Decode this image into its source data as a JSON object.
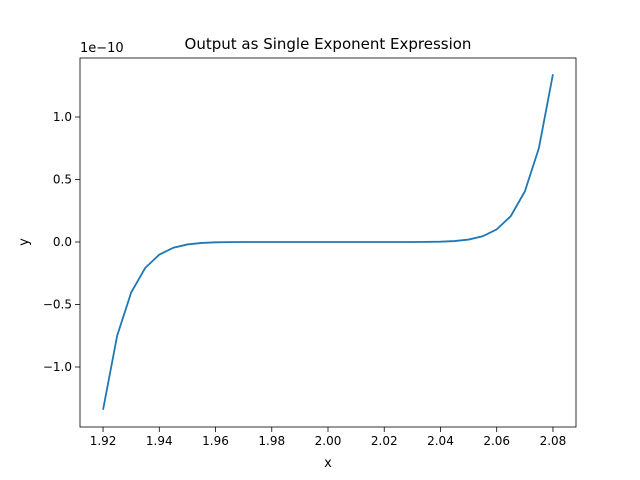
{
  "chart_data": {
    "type": "line",
    "title": "Output as Single Exponent Expression",
    "xlabel": "x",
    "ylabel": "y",
    "y_offset_label": "1e−10",
    "x": [
      1.92,
      1.925,
      1.93,
      1.935,
      1.94,
      1.945,
      1.95,
      1.955,
      1.96,
      1.965,
      1.97,
      1.975,
      1.98,
      1.985,
      1.99,
      1.995,
      2.0,
      2.005,
      2.01,
      2.015,
      2.02,
      2.025,
      2.03,
      2.035,
      2.04,
      2.045,
      2.05,
      2.055,
      2.06,
      2.065,
      2.07,
      2.075,
      2.08
    ],
    "series": [
      {
        "name": "y",
        "color": "#1f77b4",
        "values": [
          -1.342,
          -0.751,
          -0.404,
          -0.207,
          -0.101,
          -0.046,
          -0.0195,
          -0.0076,
          -0.0026,
          -0.0008,
          -0.0002,
          0,
          0,
          0,
          0,
          0,
          0,
          0,
          0,
          0,
          0,
          0,
          0.0002,
          0.0008,
          0.0026,
          0.0076,
          0.0195,
          0.046,
          0.101,
          0.207,
          0.404,
          0.751,
          1.342
        ]
      }
    ],
    "xlim": [
      1.9118,
      2.0882
    ],
    "ylim": [
      -1.48,
      1.472
    ],
    "xticks": [
      1.92,
      1.94,
      1.96,
      1.98,
      {
        "value": 2,
        "label": "2.00"
      },
      2.02,
      2.04,
      2.06,
      2.08
    ],
    "yticks": [
      {
        "value": -1,
        "label": "−1.0"
      },
      {
        "value": -0.5,
        "label": "−0.5"
      },
      {
        "value": 0,
        "label": "0.0"
      },
      {
        "value": 0.5,
        "label": "0.5"
      },
      {
        "value": 1,
        "label": "1.0"
      }
    ]
  }
}
